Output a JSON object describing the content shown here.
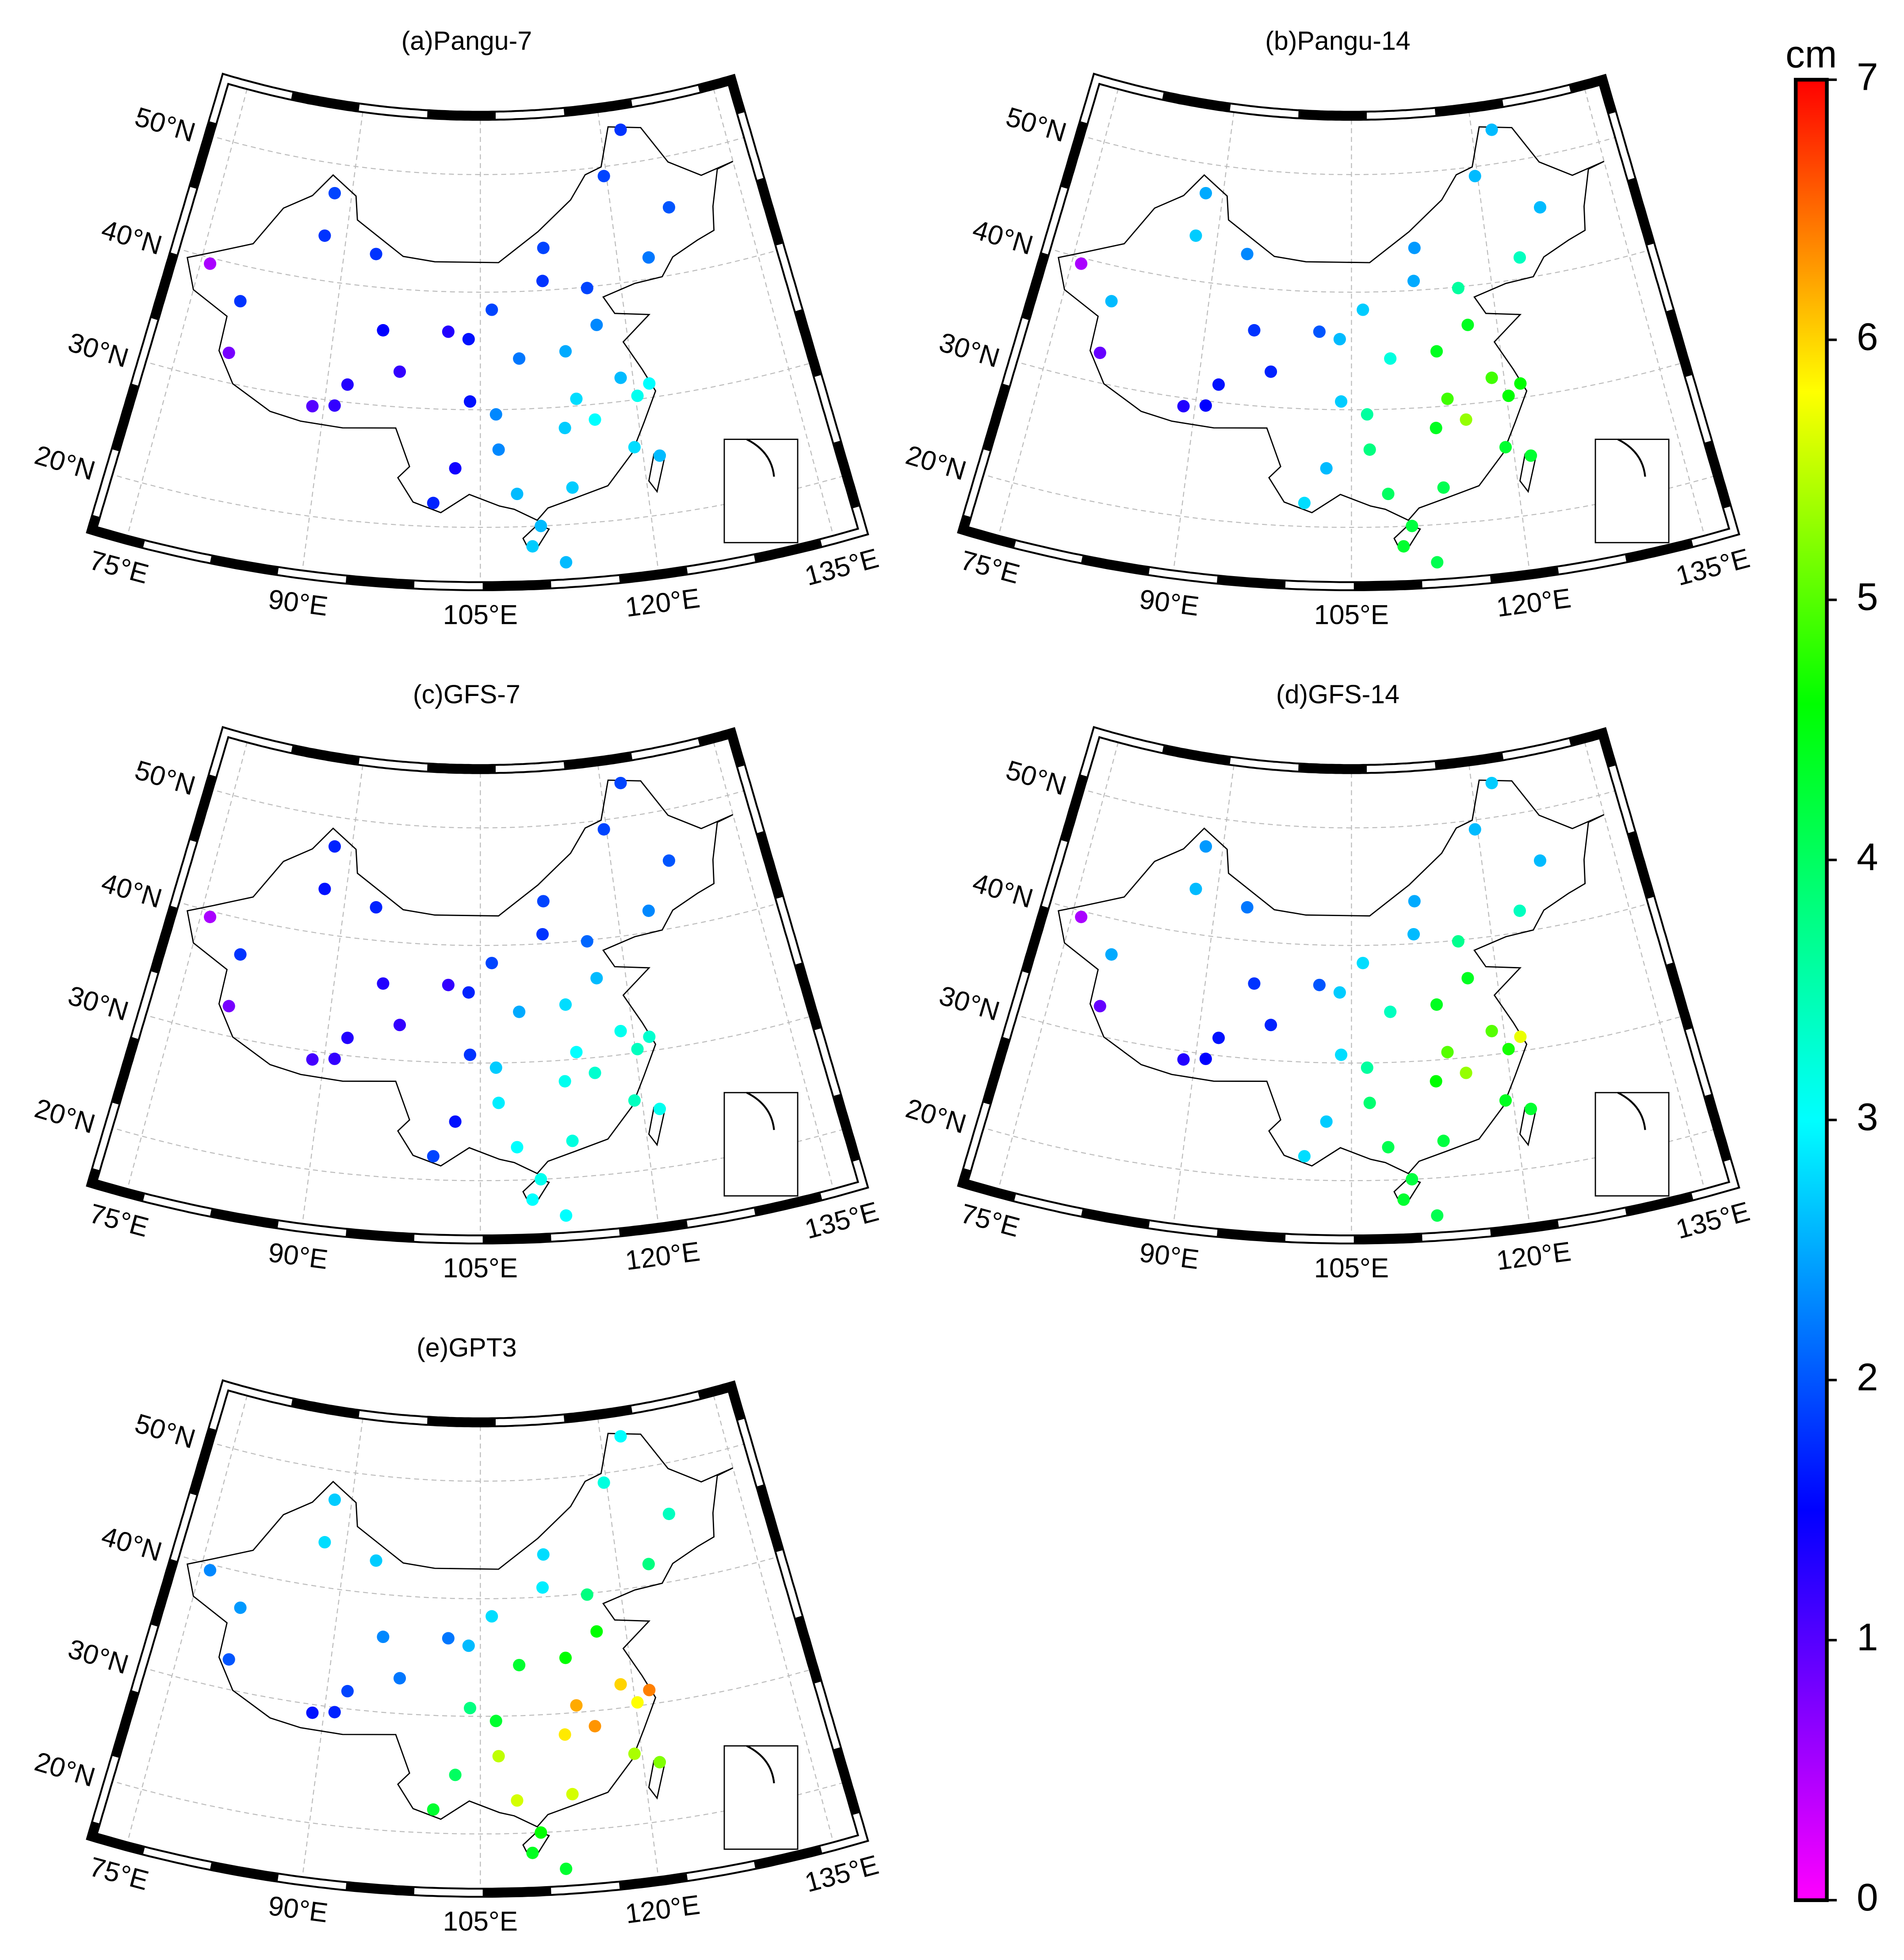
{
  "figure": {
    "panels": [
      {
        "title": "(a)Pangu-7",
        "values": [
          0.5,
          1.8,
          1.9,
          1.8,
          1.8,
          1.2,
          0.8,
          1.5,
          1.3,
          1.6,
          1.9,
          1.8,
          1.9,
          1.9,
          2.0,
          1.8,
          1.9,
          2.2,
          2.3,
          2.5,
          2.2,
          1.6,
          2.3,
          2.8,
          2.6,
          3.0,
          3.1,
          2.7,
          3.0,
          2.8,
          2.7,
          2.6,
          1.4,
          2.3,
          2.6,
          2.7,
          1.7,
          1.0,
          1.3,
          2.6,
          2.6,
          1.2
        ]
      },
      {
        "title": "(b)Pangu-14",
        "values": [
          0.5,
          2.7,
          2.5,
          2.3,
          2.6,
          1.5,
          0.9,
          1.8,
          2.0,
          2.6,
          2.7,
          2.5,
          2.4,
          3.6,
          2.6,
          2.6,
          2.6,
          3.4,
          4.4,
          4.4,
          3.2,
          2.7,
          3.6,
          4.9,
          4.9,
          4.6,
          4.6,
          4.4,
          5.3,
          4.3,
          4.1,
          4.0,
          2.6,
          3.8,
          4.2,
          4.3,
          2.8,
          1.3,
          1.6,
          4.3,
          4.1,
          1.7
        ]
      },
      {
        "title": "(c)GFS-7",
        "values": [
          0.5,
          1.6,
          1.7,
          1.7,
          1.8,
          1.2,
          0.8,
          1.3,
          1.2,
          1.7,
          1.9,
          1.8,
          1.9,
          2.1,
          2.0,
          1.9,
          1.9,
          2.3,
          2.6,
          2.8,
          2.5,
          1.8,
          2.7,
          3.0,
          3.1,
          3.3,
          3.4,
          3.1,
          3.3,
          3.4,
          3.2,
          3.0,
          1.6,
          2.9,
          3.1,
          3.0,
          1.9,
          1.1,
          1.3,
          3.1,
          3.0,
          1.2
        ]
      },
      {
        "title": "(d)GFS-14",
        "values": [
          0.5,
          2.6,
          2.4,
          2.2,
          2.5,
          1.5,
          0.9,
          1.8,
          2.0,
          2.7,
          2.8,
          2.6,
          2.5,
          3.7,
          2.6,
          2.7,
          2.6,
          3.4,
          4.4,
          4.4,
          3.4,
          2.8,
          3.6,
          5.0,
          5.0,
          5.7,
          4.7,
          4.6,
          5.3,
          4.4,
          4.2,
          4.1,
          2.7,
          3.9,
          4.2,
          4.3,
          2.8,
          1.3,
          1.6,
          4.3,
          4.1,
          1.7
        ]
      },
      {
        "title": "(e)GPT3",
        "values": [
          2.3,
          2.8,
          2.7,
          2.7,
          2.4,
          1.7,
          2.0,
          2.3,
          2.2,
          2.6,
          2.8,
          2.9,
          2.8,
          3.8,
          3.4,
          3.0,
          3.2,
          3.8,
          4.6,
          4.6,
          4.3,
          3.8,
          4.3,
          6.2,
          6.0,
          6.4,
          5.8,
          5.9,
          6.3,
          5.4,
          5.6,
          5.6,
          4.0,
          5.5,
          4.6,
          4.4,
          4.3,
          1.6,
          1.9,
          5.2,
          4.3,
          2.2
        ]
      }
    ],
    "stations": {
      "lon": [
        76,
        87.6,
        88,
        93.5,
        80,
        91,
        80,
        95,
        101.7,
        103.8,
        106.2,
        111.7,
        112,
        116.4,
        126.6,
        122.5,
        119.7,
        123.4,
        117,
        113.6,
        108.9,
        104,
        106.5,
        114.3,
        118.8,
        121.5,
        120.2,
        113,
        115.9,
        119.3,
        113.3,
        108.3,
        102.7,
        106.7,
        110.3,
        109.5,
        100.8,
        88.9,
        92,
        121.5,
        112.3,
        97
      ],
      "lat": [
        39.5,
        43.8,
        47.5,
        42.8,
        37,
        29.6,
        32.5,
        36.4,
        36.6,
        36,
        38.5,
        40.8,
        43.6,
        39.9,
        45.7,
        52.9,
        49.2,
        41.8,
        36.7,
        34.7,
        34.3,
        30.7,
        29.6,
        30.6,
        32,
        31.2,
        30.3,
        28.2,
        28.7,
        26,
        23.1,
        22.8,
        25,
        26.6,
        20,
        18.3,
        22,
        29.3,
        31.5,
        25,
        16.8,
        33
      ]
    },
    "lon_ticks": [
      {
        "value": 75,
        "label": "75°E"
      },
      {
        "value": 90,
        "label": "90°E"
      },
      {
        "value": 105,
        "label": "105°E"
      },
      {
        "value": 120,
        "label": "120°E"
      },
      {
        "value": 135,
        "label": "135°E"
      }
    ],
    "lat_ticks": [
      {
        "value": 20,
        "label": "20°N"
      },
      {
        "value": 30,
        "label": "30°N"
      },
      {
        "value": 40,
        "label": "40°N"
      },
      {
        "value": 50,
        "label": "50°N"
      }
    ],
    "colorbar": {
      "label": "cm",
      "lim": [
        0,
        7
      ],
      "ticks": [
        0,
        1,
        2,
        3,
        4,
        5,
        6,
        7
      ],
      "stops": [
        {
          "value": 0,
          "color": "#ff00ff"
        },
        {
          "value": 1.5,
          "color": "#0000ff"
        },
        {
          "value": 3,
          "color": "#00ffff"
        },
        {
          "value": 4.6,
          "color": "#00ff00"
        },
        {
          "value": 5.8,
          "color": "#ffff00"
        },
        {
          "value": 7,
          "color": "#ff0000"
        }
      ]
    }
  }
}
